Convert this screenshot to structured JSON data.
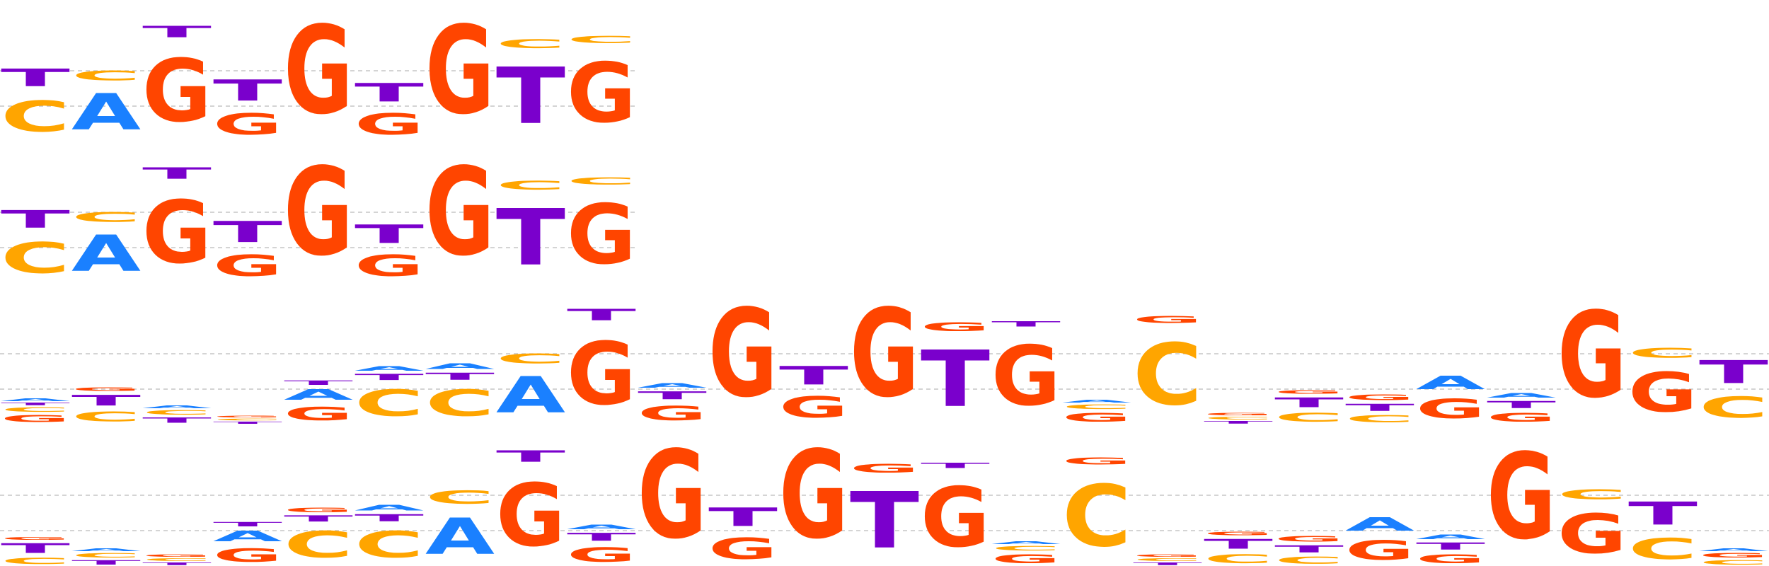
{
  "colors": {
    "A": "#1a80ff",
    "C": "#ffa500",
    "G": "#ff4500",
    "T": "#7a00cc",
    "grid": "#bbbbbb"
  },
  "logos": [
    {
      "name": "logo-1",
      "columns": [
        [
          [
            "C",
            0.7
          ],
          [
            "T",
            0.4
          ]
        ],
        [
          [
            "A",
            0.82
          ],
          [
            "C",
            0.22
          ]
        ],
        [
          [
            "G",
            1.42
          ],
          [
            "T",
            0.26
          ]
        ],
        [
          [
            "G",
            0.48
          ],
          [
            "T",
            0.48
          ]
        ],
        [
          [
            "G",
            2.0
          ]
        ],
        [
          [
            "G",
            0.48
          ],
          [
            "T",
            0.42
          ]
        ],
        [
          [
            "G",
            2.0
          ]
        ],
        [
          [
            "T",
            1.28
          ],
          [
            "C",
            0.2
          ]
        ],
        [
          [
            "G",
            1.36
          ],
          [
            "C",
            0.16
          ]
        ]
      ]
    },
    {
      "name": "logo-2",
      "columns": [
        [
          [
            "C",
            0.7
          ],
          [
            "T",
            0.4
          ]
        ],
        [
          [
            "A",
            0.82
          ],
          [
            "C",
            0.22
          ]
        ],
        [
          [
            "G",
            1.42
          ],
          [
            "T",
            0.26
          ]
        ],
        [
          [
            "G",
            0.48
          ],
          [
            "T",
            0.48
          ]
        ],
        [
          [
            "G",
            2.0
          ]
        ],
        [
          [
            "G",
            0.48
          ],
          [
            "T",
            0.42
          ]
        ],
        [
          [
            "G",
            2.0
          ]
        ],
        [
          [
            "T",
            1.28
          ],
          [
            "C",
            0.2
          ]
        ],
        [
          [
            "G",
            1.36
          ],
          [
            "C",
            0.16
          ]
        ]
      ]
    },
    {
      "name": "logo-3",
      "columns": [
        [
          [
            "G",
            0.16
          ],
          [
            "C",
            0.1
          ],
          [
            "T",
            0.06
          ],
          [
            "A",
            0.06
          ]
        ],
        [
          [
            "C",
            0.22
          ],
          [
            "T",
            0.24
          ],
          [
            "G",
            0.08
          ]
        ],
        [
          [
            "T",
            0.12
          ],
          [
            "C",
            0.1
          ],
          [
            "A",
            0.06
          ]
        ],
        [
          [
            "T",
            0.05
          ],
          [
            "C",
            0.04
          ],
          [
            "G",
            0.04
          ]
        ],
        [
          [
            "G",
            0.3
          ],
          [
            "A",
            0.24
          ],
          [
            "T",
            0.1
          ]
        ],
        [
          [
            "C",
            0.6
          ],
          [
            "T",
            0.14
          ],
          [
            "A",
            0.1
          ]
        ],
        [
          [
            "C",
            0.6
          ],
          [
            "T",
            0.16
          ],
          [
            "A",
            0.12
          ]
        ],
        [
          [
            "A",
            0.82
          ],
          [
            "C",
            0.22
          ]
        ],
        [
          [
            "G",
            1.42
          ],
          [
            "T",
            0.26
          ]
        ],
        [
          [
            "G",
            0.32
          ],
          [
            "T",
            0.18
          ],
          [
            "A",
            0.1
          ]
        ],
        [
          [
            "G",
            2.0
          ]
        ],
        [
          [
            "G",
            0.48
          ],
          [
            "T",
            0.42
          ]
        ],
        [
          [
            "G",
            2.0
          ]
        ],
        [
          [
            "T",
            1.28
          ],
          [
            "G",
            0.2
          ]
        ],
        [
          [
            "G",
            1.36
          ],
          [
            "T",
            0.12
          ]
        ],
        [
          [
            "G",
            0.2
          ],
          [
            "C",
            0.1
          ],
          [
            "A",
            0.06
          ]
        ],
        [
          [
            "C",
            1.4
          ],
          [
            "G",
            0.16
          ]
        ],
        [
          [
            "T",
            0.06
          ],
          [
            "C",
            0.06
          ],
          [
            "G",
            0.05
          ]
        ],
        [
          [
            "C",
            0.2
          ],
          [
            "T",
            0.22
          ],
          [
            "G",
            0.08
          ]
        ],
        [
          [
            "C",
            0.16
          ],
          [
            "T",
            0.16
          ],
          [
            "G",
            0.12
          ]
        ],
        [
          [
            "G",
            0.44
          ],
          [
            "A",
            0.3
          ]
        ],
        [
          [
            "G",
            0.2
          ],
          [
            "T",
            0.16
          ],
          [
            "A",
            0.1
          ]
        ],
        [
          [
            "G",
            1.95
          ]
        ],
        [
          [
            "G",
            0.9
          ],
          [
            "C",
            0.22
          ]
        ],
        [
          [
            "C",
            0.48
          ],
          [
            "T",
            0.52
          ]
        ]
      ]
    },
    {
      "name": "logo-4",
      "columns": [
        [
          [
            "C",
            0.14
          ],
          [
            "T",
            0.22
          ],
          [
            "G",
            0.06
          ]
        ],
        [
          [
            "T",
            0.1
          ],
          [
            "C",
            0.1
          ],
          [
            "A",
            0.06
          ]
        ],
        [
          [
            "T",
            0.06
          ],
          [
            "C",
            0.06
          ],
          [
            "G",
            0.05
          ]
        ],
        [
          [
            "G",
            0.3
          ],
          [
            "A",
            0.24
          ],
          [
            "T",
            0.1
          ]
        ],
        [
          [
            "C",
            0.6
          ],
          [
            "T",
            0.14
          ],
          [
            "G",
            0.1
          ]
        ],
        [
          [
            "C",
            0.6
          ],
          [
            "T",
            0.16
          ],
          [
            "A",
            0.12
          ]
        ],
        [
          [
            "A",
            0.82
          ],
          [
            "C",
            0.3
          ]
        ],
        [
          [
            "G",
            1.42
          ],
          [
            "T",
            0.26
          ]
        ],
        [
          [
            "G",
            0.32
          ],
          [
            "T",
            0.18
          ],
          [
            "A",
            0.1
          ]
        ],
        [
          [
            "G",
            2.0
          ]
        ],
        [
          [
            "G",
            0.48
          ],
          [
            "T",
            0.42
          ]
        ],
        [
          [
            "G",
            2.0
          ]
        ],
        [
          [
            "T",
            1.28
          ],
          [
            "G",
            0.2
          ]
        ],
        [
          [
            "G",
            1.36
          ],
          [
            "T",
            0.12
          ]
        ],
        [
          [
            "G",
            0.2
          ],
          [
            "C",
            0.1
          ],
          [
            "A",
            0.06
          ]
        ],
        [
          [
            "C",
            1.4
          ],
          [
            "G",
            0.16
          ]
        ],
        [
          [
            "T",
            0.06
          ],
          [
            "C",
            0.06
          ],
          [
            "G",
            0.05
          ]
        ],
        [
          [
            "C",
            0.2
          ],
          [
            "T",
            0.22
          ],
          [
            "G",
            0.08
          ]
        ],
        [
          [
            "C",
            0.16
          ],
          [
            "T",
            0.16
          ],
          [
            "G",
            0.12
          ]
        ],
        [
          [
            "G",
            0.44
          ],
          [
            "A",
            0.3
          ]
        ],
        [
          [
            "G",
            0.2
          ],
          [
            "T",
            0.16
          ],
          [
            "A",
            0.1
          ]
        ],
        [
          [
            "G",
            1.95
          ]
        ],
        [
          [
            "G",
            0.9
          ],
          [
            "C",
            0.22
          ]
        ],
        [
          [
            "C",
            0.48
          ],
          [
            "T",
            0.52
          ]
        ],
        [
          [
            "C",
            0.1
          ],
          [
            "G",
            0.1
          ],
          [
            "A",
            0.06
          ]
        ]
      ]
    }
  ]
}
